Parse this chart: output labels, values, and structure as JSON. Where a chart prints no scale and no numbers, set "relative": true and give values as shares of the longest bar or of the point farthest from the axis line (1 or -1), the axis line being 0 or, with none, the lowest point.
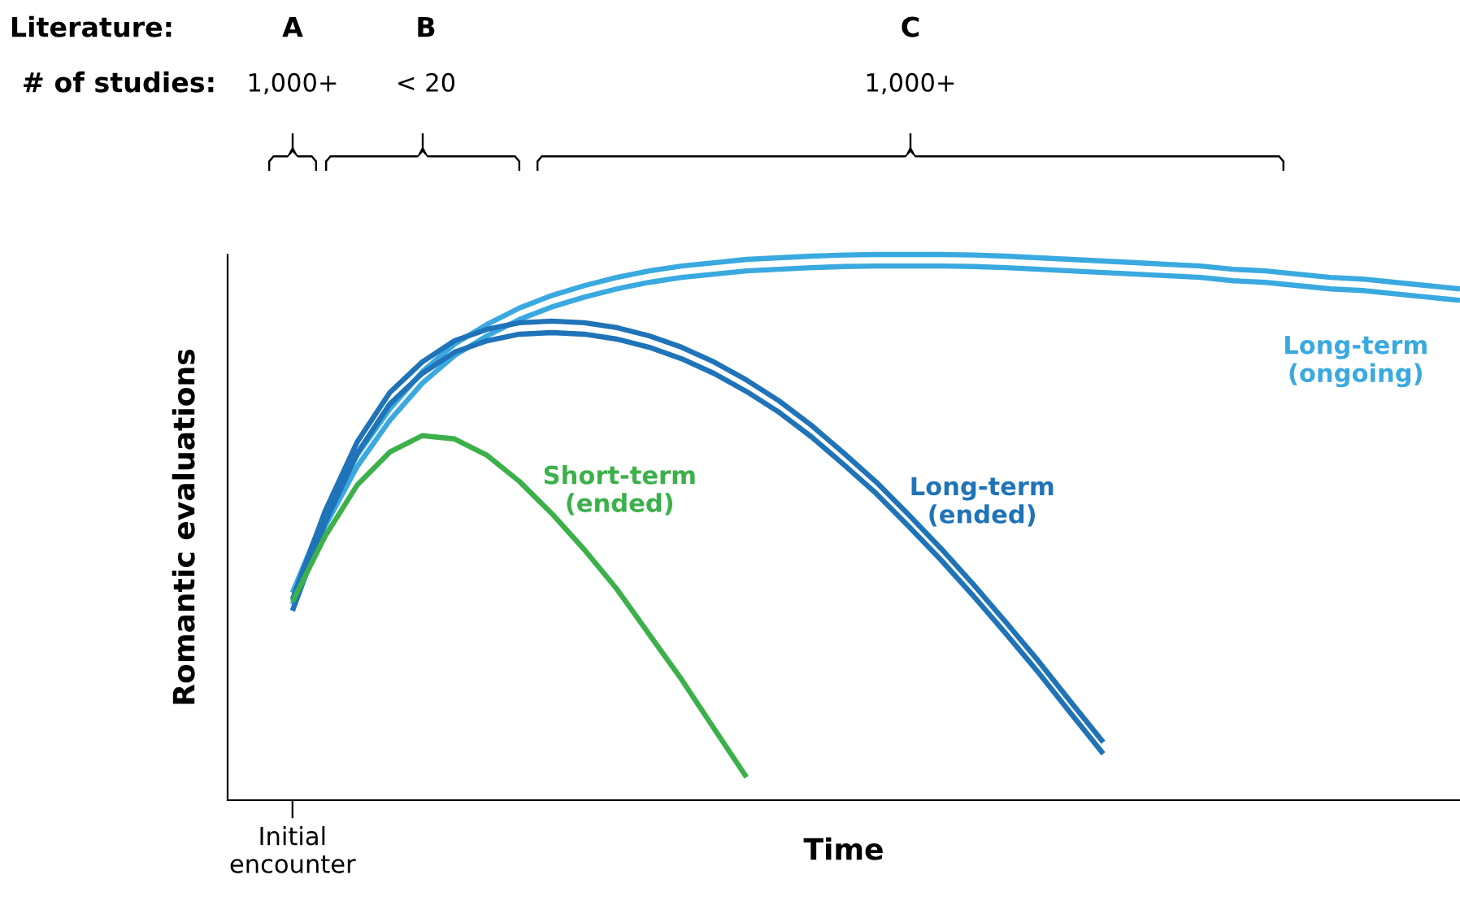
{
  "chart_data": {
    "type": "line",
    "relative": true,
    "xlabel": "Time",
    "ylabel": "Romantic evaluations",
    "grid": false,
    "legend": false,
    "marker": "none",
    "line_style": "solid",
    "annotations": [
      "Initial\nencounter",
      "Literature:",
      "A",
      "B",
      "C",
      "# of studies:",
      "1,000+",
      "< 20",
      "1,000+"
    ],
    "categories": [
      null,
      null,
      null,
      null,
      null,
      null,
      null,
      null,
      null,
      null,
      null,
      null,
      null,
      null,
      null,
      null,
      null,
      null,
      null,
      null,
      null,
      null,
      null,
      null,
      null,
      null,
      null,
      null,
      null,
      null,
      null,
      null,
      null,
      null,
      null,
      null,
      null,
      null,
      null
    ],
    "series": [
      {
        "name": "Long-term\n(ongoing)",
        "color": "#3aa9e0",
        "values": [
          null,
          null,
          0.38,
          0.523,
          0.633,
          0.717,
          0.785,
          0.836,
          0.872,
          0.902,
          0.925,
          0.943,
          0.958,
          0.97,
          0.979,
          0.985,
          0.991,
          0.994,
          0.997,
          0.999,
          1,
          1,
          1,
          0.999,
          0.997,
          0.994,
          0.991,
          0.988,
          0.985,
          0.982,
          0.979,
          0.973,
          0.97,
          0.964,
          0.958,
          0.955,
          0.949,
          0.943,
          0.937
        ]
      },
      {
        "color": "#3aa9e0",
        "values": [
          null,
          null,
          0.359,
          0.502,
          0.612,
          0.696,
          0.764,
          0.815,
          0.851,
          0.881,
          0.904,
          0.922,
          0.937,
          0.949,
          0.958,
          0.964,
          0.97,
          0.973,
          0.976,
          0.978,
          0.979,
          0.979,
          0.979,
          0.978,
          0.976,
          0.973,
          0.97,
          0.967,
          0.964,
          0.961,
          0.958,
          0.952,
          0.949,
          0.943,
          0.937,
          0.934,
          0.928,
          0.922,
          0.916
        ]
      },
      {
        "name": "Long-term\n(ended)",
        "color": "#1f73b8",
        "values": [
          null,
          null,
          0.368,
          0.529,
          0.657,
          0.747,
          0.803,
          0.842,
          0.863,
          0.875,
          0.878,
          0.875,
          0.866,
          0.851,
          0.83,
          0.803,
          0.77,
          0.732,
          0.687,
          0.636,
          0.583,
          0.523,
          0.461,
          0.395,
          0.326,
          0.255,
          0.18,
          0.106,
          null,
          null,
          null,
          null,
          null,
          null,
          null,
          null,
          null,
          null,
          null
        ]
      },
      {
        "color": "#1f73b8",
        "values": [
          null,
          null,
          0.347,
          0.508,
          0.636,
          0.726,
          0.782,
          0.821,
          0.842,
          0.854,
          0.857,
          0.854,
          0.845,
          0.83,
          0.809,
          0.782,
          0.749,
          0.711,
          0.666,
          0.615,
          0.562,
          0.502,
          0.44,
          0.374,
          0.305,
          0.234,
          0.159,
          0.085,
          null,
          null,
          null,
          null,
          null,
          null,
          null,
          null,
          null,
          null,
          null
        ]
      },
      {
        "name": "Short-term\n(ended)",
        "color": "#3cb04a",
        "values": [
          null,
          null,
          0.364,
          0.483,
          0.578,
          0.638,
          0.668,
          0.662,
          0.632,
          0.584,
          0.525,
          0.459,
          0.387,
          0.304,
          0.221,
          0.131,
          0.042,
          null,
          null,
          null,
          null,
          null,
          null,
          null,
          null,
          null,
          null,
          null,
          null,
          null,
          null,
          null,
          null,
          null,
          null,
          null,
          null,
          null,
          null
        ]
      }
    ]
  }
}
